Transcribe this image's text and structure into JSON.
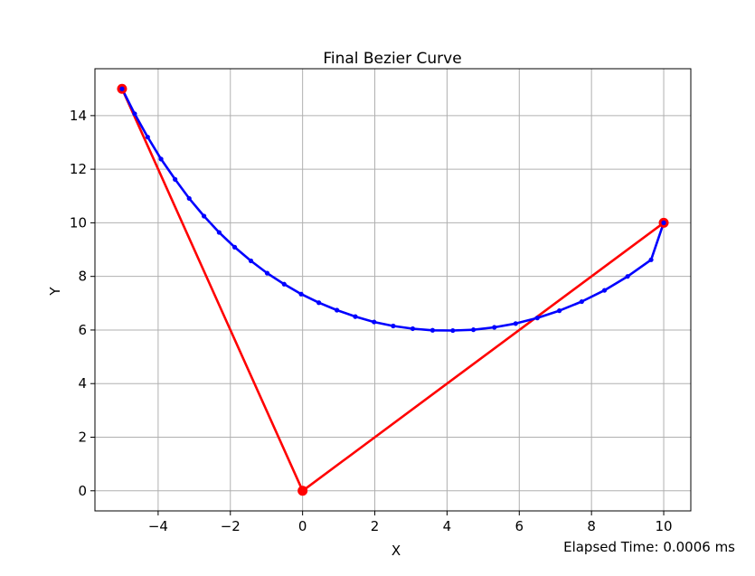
{
  "chart_data": {
    "type": "line",
    "title": "Final Bezier Curve",
    "xlabel": "X",
    "ylabel": "Y",
    "xlim": [
      -5.75,
      10.75
    ],
    "ylim": [
      -0.75,
      15.75
    ],
    "xticks": [
      -4,
      -2,
      0,
      2,
      4,
      6,
      8,
      10
    ],
    "xtick_labels": [
      "−4",
      "−2",
      "0",
      "2",
      "4",
      "6",
      "8",
      "10"
    ],
    "yticks": [
      0,
      2,
      4,
      6,
      8,
      10,
      12,
      14
    ],
    "ytick_labels": [
      "0",
      "2",
      "4",
      "6",
      "8",
      "10",
      "12",
      "14"
    ],
    "grid": true,
    "series": [
      {
        "role": "control-polygon",
        "color": "#ff0000",
        "marker": "large-dot",
        "x": [
          -5,
          0,
          10
        ],
        "y": [
          15,
          0,
          10
        ]
      },
      {
        "role": "bezier-curve",
        "color": "#0000ff",
        "marker": "small-dot",
        "x": [
          -5.0,
          -4.65,
          -4.29,
          -3.92,
          -3.53,
          -3.14,
          -2.73,
          -2.31,
          -1.88,
          -1.43,
          -0.98,
          -0.51,
          -0.04,
          0.45,
          0.95,
          1.46,
          1.98,
          2.51,
          3.05,
          3.6,
          4.16,
          4.73,
          5.31,
          5.9,
          6.5,
          7.11,
          7.73,
          8.36,
          9.0,
          9.65,
          10.0
        ],
        "y": [
          15.0,
          14.07,
          13.2,
          12.38,
          11.62,
          10.91,
          10.25,
          9.64,
          9.09,
          8.58,
          8.12,
          7.71,
          7.34,
          7.02,
          6.74,
          6.5,
          6.3,
          6.15,
          6.05,
          5.99,
          5.98,
          6.01,
          6.1,
          6.24,
          6.45,
          6.72,
          7.06,
          7.48,
          8.0,
          8.62,
          10.0
        ]
      }
    ]
  },
  "footer": {
    "elapsed": "Elapsed Time: 0.0006 ms"
  }
}
